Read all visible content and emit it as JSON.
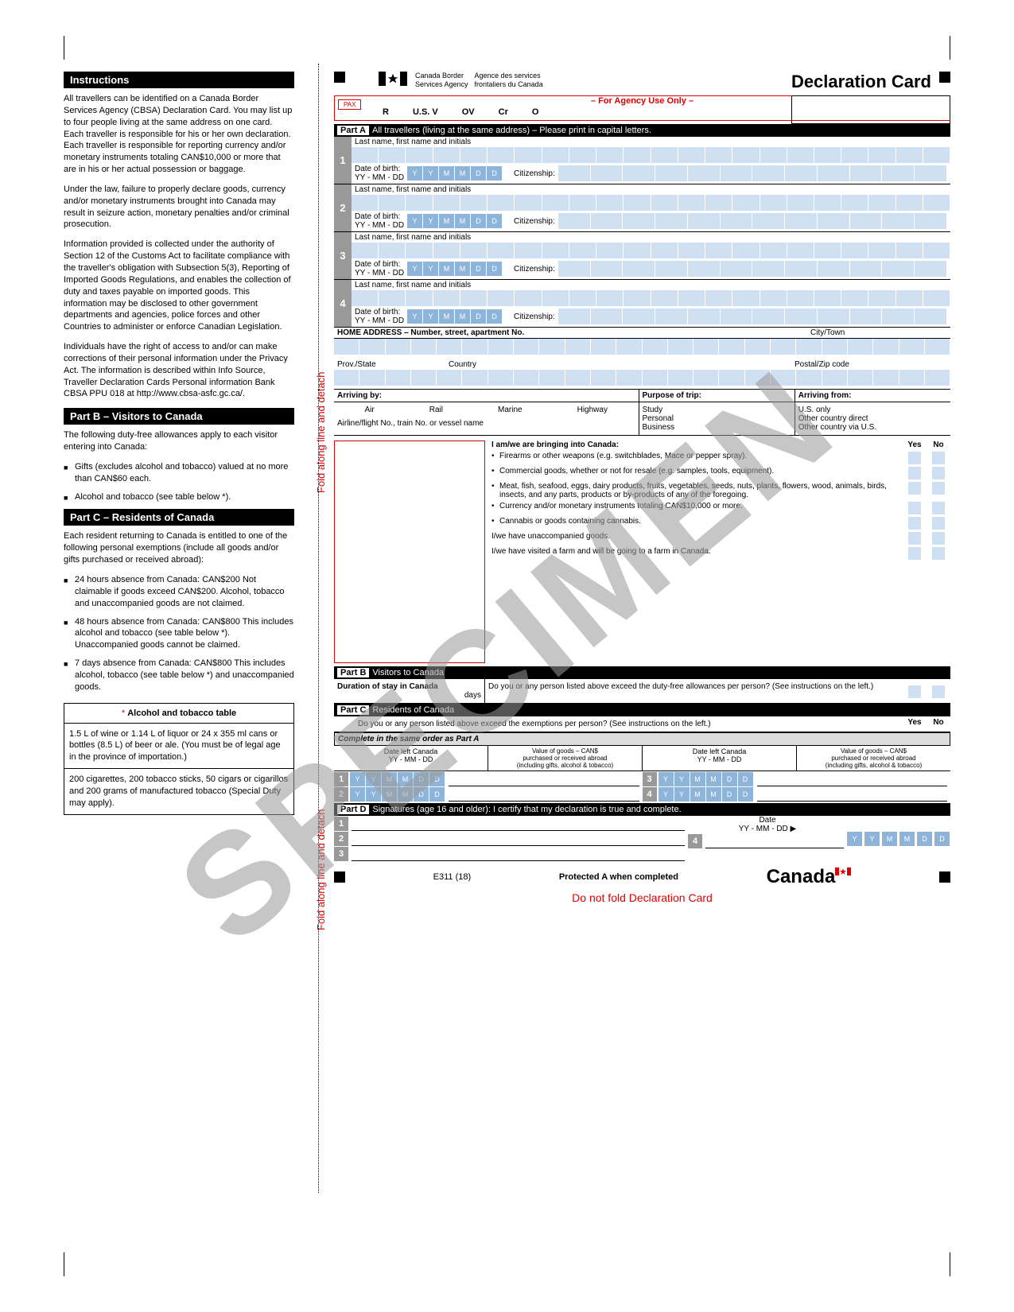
{
  "left": {
    "instructions_header": "Instructions",
    "p1": "All travellers can be identified on a Canada Border Services Agency (CBSA) Declaration Card. You may list up to four people living at the same address on one card. Each traveller is responsible for his or her own declaration. Each traveller is responsible for reporting currency and/or monetary instruments totaling CAN$10,000 or more that are in his or her actual possession or baggage.",
    "p2": "Under the law, failure to properly declare goods, currency and/or monetary instruments brought into Canada may result in seizure action, monetary penalties and/or criminal prosecution.",
    "p3": "Information provided is collected under the authority of Section 12 of the Customs Act to facilitate compliance with the traveller's obligation with Subsection 5(3), Reporting of Imported Goods Regulations, and enables the collection of duty and taxes payable on imported goods. This information may be disclosed to other government departments and agencies, police forces and other Countries to administer or enforce Canadian Legislation.",
    "p4": "Individuals have the right of access to and/or can make corrections of their personal information under the Privacy Act. The information is described within Info Source, Traveller Declaration Cards Personal information Bank CBSA PPU 018 at http://www.cbsa-asfc.gc.ca/.",
    "partb_header": "Part B – Visitors to Canada",
    "partb_intro": "The following duty-free allowances apply to each visitor entering into Canada:",
    "partb_li1": "Gifts (excludes alcohol and tobacco) valued at no more than CAN$60 each.",
    "partb_li2": "Alcohol and tobacco (see table below *).",
    "partc_header": "Part C – Residents of Canada",
    "partc_intro": "Each resident returning to Canada is entitled to one of the following personal exemptions (include all goods and/or gifts purchased or received abroad):",
    "partc_li1": "24 hours absence from Canada: CAN$200 Not claimable if goods exceed CAN$200. Alcohol, tobacco and unaccompanied goods are not claimed.",
    "partc_li2": "48 hours absence from Canada: CAN$800 This includes alcohol and tobacco (see table below *). Unaccompanied goods cannot be claimed.",
    "partc_li3": "7 days absence from Canada: CAN$800 This includes alcohol, tobacco (see table below *) and unaccompanied goods.",
    "table_head": "* Alcohol and tobacco table",
    "table_c1": "1.5 L of wine or 1.14 L of liquor or 24 x 355 ml cans or bottles (8.5 L) of beer or ale. (You must be of legal age in the province of importation.)",
    "table_c2": "200 cigarettes, 200 tobacco sticks, 50 cigars or cigarillos and 200 grams of manufactured tobacco (Special Duty may apply)."
  },
  "fold_text": "Fold along line and detach",
  "card": {
    "agency_en": "Canada Border\nServices Agency",
    "agency_fr": "Agence des services\nfrontaliers du Canada",
    "title": "Declaration Card",
    "agency_only": "– For Agency Use Only –",
    "pax": "PAX",
    "cols": [
      "R",
      "U.S. V",
      "OV",
      "Cr",
      "O"
    ],
    "parta_label": "Part A",
    "parta_text": "All travellers (living at the same address) – Please print in capital letters.",
    "name_label": "Last name, first name and initials",
    "dob_label": "Date of birth:",
    "dob_fmt": "YY - MM - DD",
    "date_cells": [
      "Y",
      "Y",
      "M",
      "M",
      "D",
      "D"
    ],
    "citizenship": "Citizenship:",
    "home_addr": "HOME ADDRESS – Number, street, apartment No.",
    "city": "City/Town",
    "prov": "Prov./State",
    "country": "Country",
    "postal": "Postal/Zip code",
    "arriving_by": "Arriving by:",
    "modes": [
      "Air",
      "Rail",
      "Marine",
      "Highway"
    ],
    "flight_line": "Airline/flight No., train No. or vessel name",
    "purpose": "Purpose of trip:",
    "purposes": [
      "Study",
      "Personal",
      "Business"
    ],
    "arriving_from": "Arriving from:",
    "froms": [
      "U.S. only",
      "Other country direct",
      "Other country via U.S."
    ],
    "bringing": "I am/we are bringing into Canada:",
    "yes": "Yes",
    "no": "No",
    "q1": "Firearms or other weapons (e.g. switchblades, Mace or pepper spray).",
    "q2": "Commercial goods, whether or not for resale (e.g. samples, tools, equipment).",
    "q3": "Meat, fish, seafood, eggs, dairy products, fruits, vegetables, seeds, nuts, plants, flowers, wood, animals, birds, insects, and any parts, products or by-products of any of the foregoing.",
    "q4": "Currency and/or monetary instruments totaling CAN$10,000 or more.",
    "q5": "Cannabis or goods containing cannabis.",
    "q6": "I/we have unaccompanied goods.",
    "q7": "I/we have visited a farm and will be going to a farm in Canada.",
    "partb_label": "Part B",
    "partb_bar": "Visitors to Canada",
    "duration": "Duration of stay in Canada",
    "days": "days",
    "partb_q": "Do you or any person listed above exceed the duty-free allowances per person? (See instructions on the left.)",
    "partc_label": "Part C",
    "partc_bar": "Residents of Canada",
    "partc_q": "Do you or any person listed above exceed the exemptions per person? (See instructions on the left.)",
    "complete_order": "Complete in the same order as Part A",
    "date_left": "Date left Canada\nYY - MM - DD",
    "value_goods": "Value of goods – CAN$\npurchased or received abroad\n(including gifts, alcohol & tobacco)",
    "partd_label": "Part D",
    "partd_bar": "Signatures (age 16 and older): I certify that my declaration is true and complete.",
    "sig_date": "Date\nYY - MM - DD",
    "form_no": "E311 (18)",
    "protected": "Protected A when completed",
    "canada": "Canada",
    "no_fold": "Do not fold Declaration Card"
  },
  "specimen": "SPECIMEN",
  "colors": {
    "cell_bg": "#cfe0f2",
    "date_bg": "#8fb4d9",
    "grey": "#999999",
    "red": "#d00000"
  }
}
